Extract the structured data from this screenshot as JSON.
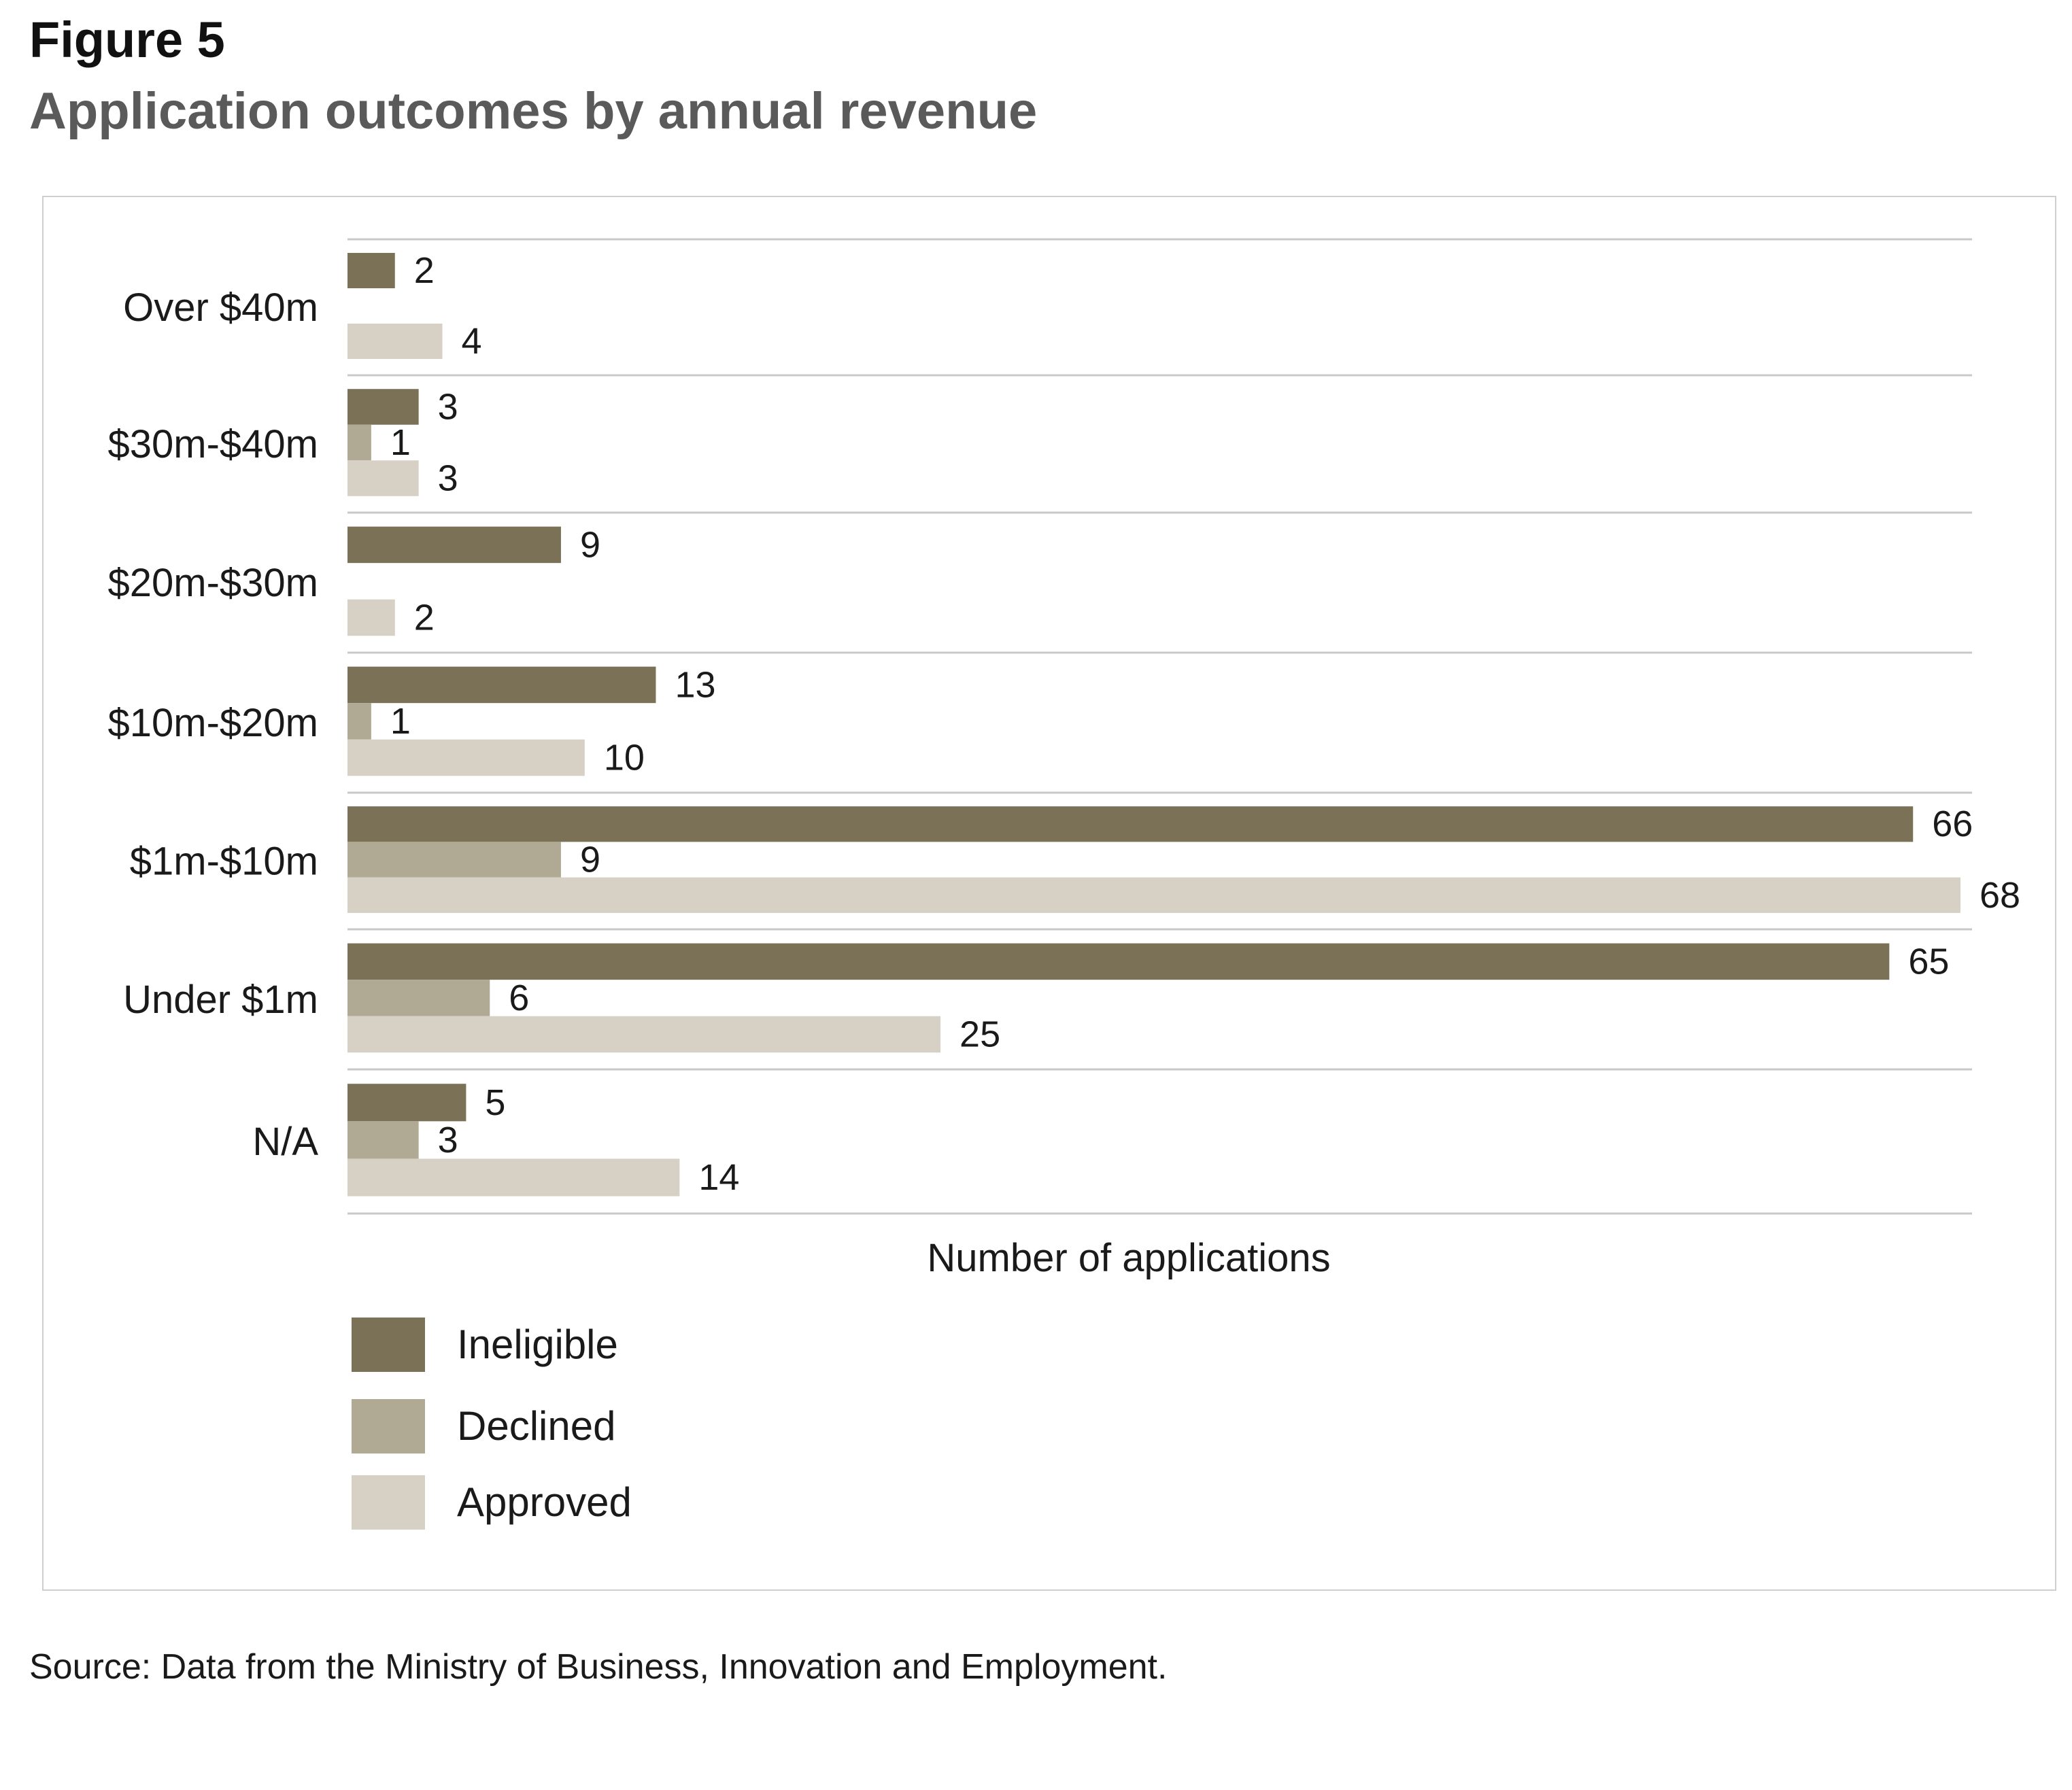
{
  "figure_label": "Figure 5",
  "title": "Application outcomes by annual revenue",
  "source": "Source: Data from the Ministry of Business, Innovation and Employment.",
  "colors": {
    "ineligible": "#7a7156",
    "declined": "#b0a994",
    "approved": "#d6d0c5",
    "gridline": "#c8c8c8",
    "frame": "#cfcfcf"
  },
  "chart_data": {
    "type": "bar",
    "orientation": "horizontal",
    "title": "Application outcomes by annual revenue",
    "xlabel": "Number of applications",
    "ylabel": "",
    "xlim": [
      0,
      68
    ],
    "grid": true,
    "legend_position": "bottom-left",
    "categories": [
      "Over $40m",
      "$30m-$40m",
      "$20m-$30m",
      "$10m-$20m",
      "$1m-$10m",
      "Under $1m",
      "N/A"
    ],
    "series": [
      {
        "name": "Ineligible",
        "color_key": "ineligible",
        "values": [
          2,
          3,
          9,
          13,
          66,
          65,
          5
        ]
      },
      {
        "name": "Declined",
        "color_key": "declined",
        "values": [
          null,
          1,
          null,
          1,
          9,
          6,
          3
        ]
      },
      {
        "name": "Approved",
        "color_key": "approved",
        "values": [
          4,
          3,
          2,
          10,
          68,
          25,
          14
        ]
      }
    ]
  }
}
